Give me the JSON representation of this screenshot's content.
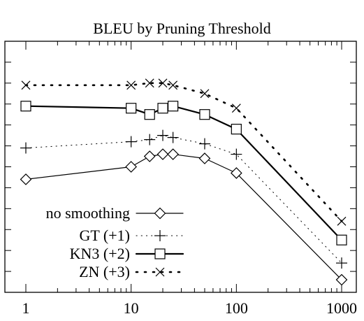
{
  "chart_data": {
    "type": "line",
    "title": "BLEU by Pruning Threshold",
    "xlabel": "",
    "ylabel": "",
    "xscale": "log",
    "xlim": [
      1,
      1000
    ],
    "ylim": [
      0,
      12
    ],
    "grid": false,
    "legend_position": "bottom-left",
    "xticks": [
      1,
      10,
      100,
      1000
    ],
    "xtick_labels": [
      "1",
      "10",
      "100",
      "1000"
    ],
    "yticks": [
      1,
      2,
      3,
      4,
      5,
      6,
      7,
      8,
      9,
      10,
      11,
      12
    ],
    "series": [
      {
        "name": "no smoothing",
        "marker": "diamond",
        "line": "solid",
        "x": [
          1,
          10,
          15,
          20,
          25,
          50,
          100,
          1000
        ],
        "y": [
          5.4,
          6.0,
          6.5,
          6.6,
          6.6,
          6.4,
          5.7,
          0.6
        ]
      },
      {
        "name": "GT (+1)",
        "marker": "plus",
        "line": "dotted",
        "x": [
          1,
          10,
          15,
          20,
          25,
          50,
          100,
          1000
        ],
        "y": [
          6.9,
          7.2,
          7.3,
          7.5,
          7.4,
          7.1,
          6.6,
          1.4
        ]
      },
      {
        "name": "KN3 (+2)",
        "marker": "square",
        "line": "solid-thick",
        "x": [
          1,
          10,
          15,
          20,
          25,
          50,
          100,
          1000
        ],
        "y": [
          8.9,
          8.8,
          8.5,
          8.8,
          8.9,
          8.5,
          7.8,
          2.5
        ]
      },
      {
        "name": "ZN (+3)",
        "marker": "x",
        "line": "dotted-thick",
        "x": [
          1,
          10,
          15,
          20,
          25,
          50,
          100,
          1000
        ],
        "y": [
          9.9,
          9.9,
          10.0,
          10.0,
          9.9,
          9.5,
          8.8,
          3.4
        ]
      }
    ]
  }
}
